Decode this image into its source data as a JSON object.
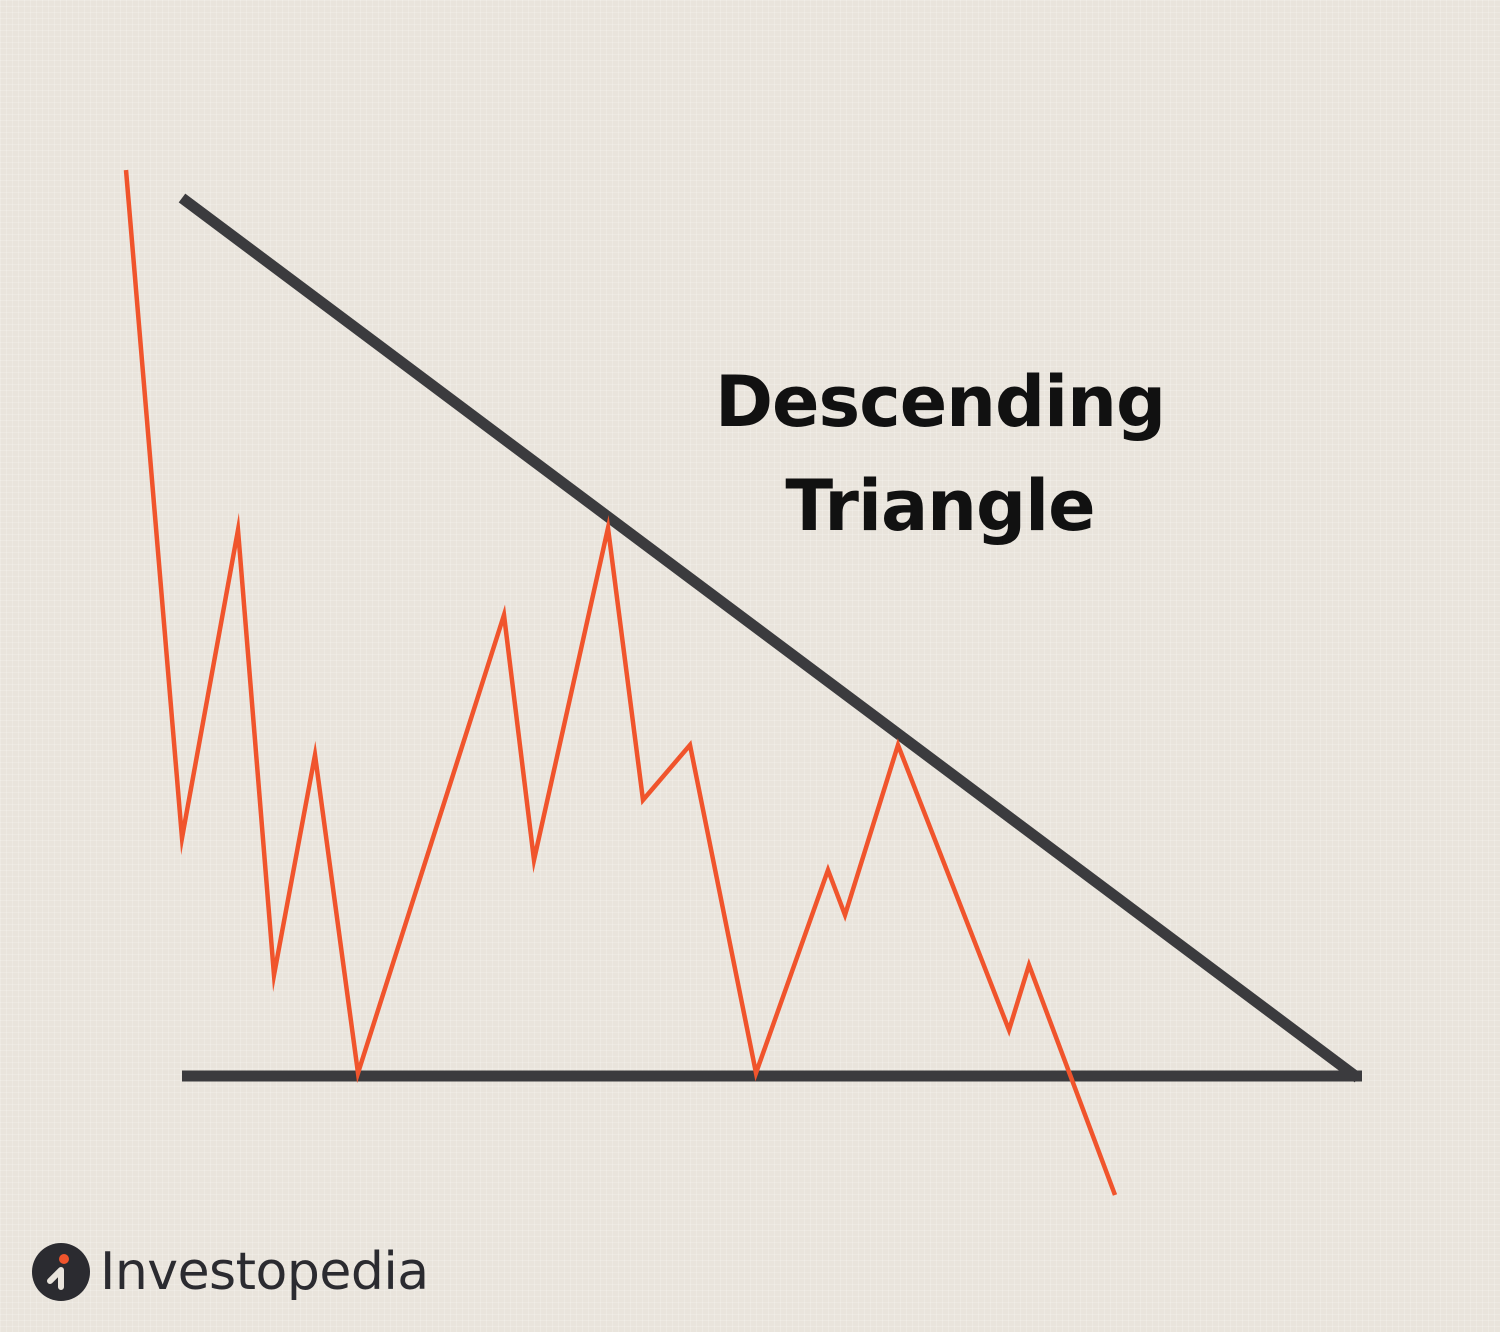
{
  "title": {
    "line1": "Descending",
    "line2": "Triangle"
  },
  "brand": {
    "name": "Investopedia",
    "logo_icon": "investopedia-logo-icon"
  },
  "colors": {
    "background": "#e9e4dc",
    "trendlines": "#3b3b3e",
    "price_line": "#f0542c",
    "title_text": "#111111",
    "logo_dark": "#2b2b30",
    "logo_accent": "#f0542c"
  }
}
